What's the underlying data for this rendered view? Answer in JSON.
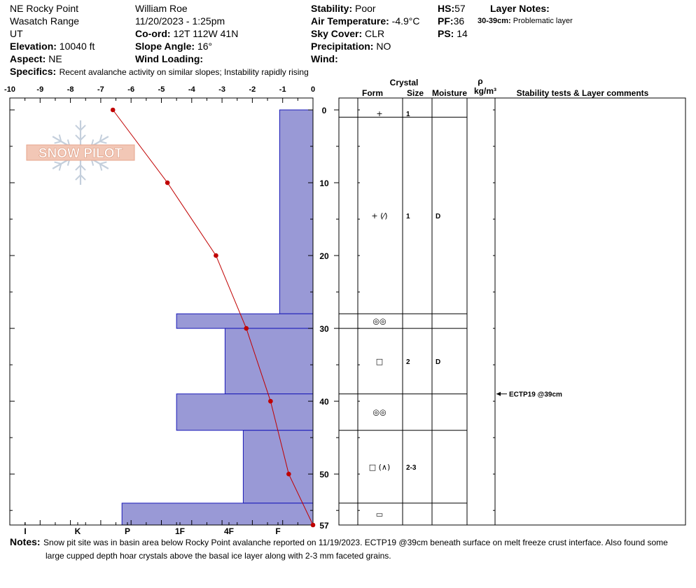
{
  "header": {
    "location": "NE Rocky Point",
    "range": "Wasatch Range",
    "state": "UT",
    "elevation_label": "Elevation:",
    "elevation_value": "10040 ft",
    "aspect_label": "Aspect:",
    "aspect_value": "NE",
    "specifics_label": "Specifics:",
    "specifics_value": "Recent avalanche activity on similar slopes; Instability rapidly rising",
    "observer": "William  Roe",
    "datetime": "11/20/2023 - 1:25pm",
    "coord_label": "Co-ord:",
    "coord_value": "12T 112W 41N",
    "slope_label": "Slope Angle:",
    "slope_value": "16°",
    "wind_loading_label": "Wind Loading:",
    "stability_label": "Stability:",
    "stability_value": "Poor",
    "air_temp_label": "Air Temperature:",
    "air_temp_value": "-4.9°C",
    "sky_label": "Sky Cover:",
    "sky_value": "CLR",
    "precip_label": "Precipitation:",
    "precip_value": "NO",
    "wind_label": "Wind:",
    "hs_label": "HS:",
    "hs_value": "57",
    "pf_label": "PF:",
    "pf_value": "36",
    "ps_label": "PS:",
    "ps_value": "14",
    "layer_notes_label": "Layer Notes:",
    "layer_note_range": "30-39cm:",
    "layer_note_text": "Problematic layer"
  },
  "logo_text": "SNOW PILOT",
  "table": {
    "crystal_label": "Crystal",
    "form_label": "Form",
    "size_label": "Size",
    "moisture_label": "Moisture",
    "rho_label": "ρ",
    "density_unit": "kg/m³",
    "comments_label": "Stability tests & Layer comments"
  },
  "notes_label": "Notes:",
  "notes_line1": "Snow pit site was in basin area below Rocky Point avalanche reported on 11/19/2023. ECTP19 @39cm beneath surface on melt freeze crust interface. Also found some",
  "notes_line2": "large cupped depth hoar crystals above the basal ice layer along with 2-3 mm faceted grains.",
  "chart_data": {
    "type": "snow-profile",
    "temp_axis": {
      "ticks": [
        -10,
        -9,
        -8,
        -7,
        -6,
        -5,
        -4,
        -3,
        -2,
        -1,
        0
      ],
      "range": [
        -10,
        0
      ]
    },
    "depth_axis": {
      "ticks": [
        0,
        10,
        20,
        30,
        40,
        50,
        57
      ],
      "range": [
        0,
        57
      ],
      "unit": "cm"
    },
    "hardness_axis": {
      "labels": [
        "I",
        "K",
        "P",
        "1F",
        "4F",
        "F"
      ]
    },
    "temperature_profile": [
      {
        "depth": 0,
        "temp": -6.6
      },
      {
        "depth": 10,
        "temp": -4.8
      },
      {
        "depth": 20,
        "temp": -3.2
      },
      {
        "depth": 30,
        "temp": -2.2
      },
      {
        "depth": 40,
        "temp": -1.4
      },
      {
        "depth": 50,
        "temp": -0.8
      },
      {
        "depth": 57,
        "temp": 0
      }
    ],
    "hardness_layers": [
      {
        "top": 0,
        "bottom": 28,
        "temp_extent": -1.1
      },
      {
        "top": 28,
        "bottom": 30,
        "temp_extent": -4.5
      },
      {
        "top": 30,
        "bottom": 39,
        "temp_extent": -2.9
      },
      {
        "top": 39,
        "bottom": 44,
        "temp_extent": -4.5
      },
      {
        "top": 44,
        "bottom": 54,
        "temp_extent": -2.3
      },
      {
        "top": 54,
        "bottom": 57,
        "temp_extent": -6.3
      }
    ],
    "layers": [
      {
        "top": 0,
        "bottom": 1,
        "form": "+",
        "size": "1",
        "moisture": ""
      },
      {
        "top": 1,
        "bottom": 28,
        "form": "+ (⁄)",
        "size": "1",
        "moisture": "D"
      },
      {
        "top": 28,
        "bottom": 30,
        "form": "◎◎",
        "size": "",
        "moisture": ""
      },
      {
        "top": 30,
        "bottom": 39,
        "form": "□",
        "size": "2",
        "moisture": "D"
      },
      {
        "top": 39,
        "bottom": 44,
        "form": "◎◎",
        "size": "",
        "moisture": ""
      },
      {
        "top": 44,
        "bottom": 54,
        "form": "□ (∧)",
        "size": "2-3",
        "moisture": ""
      },
      {
        "top": 54,
        "bottom": 57,
        "form": "▭",
        "size": "",
        "moisture": ""
      }
    ],
    "stability_tests": [
      {
        "depth": 39,
        "label": "ECTP19 @39cm"
      }
    ],
    "colors": {
      "hardness_fill": "#9999d6",
      "hardness_stroke": "#1a1ab8",
      "temp_line": "#c00000"
    }
  }
}
